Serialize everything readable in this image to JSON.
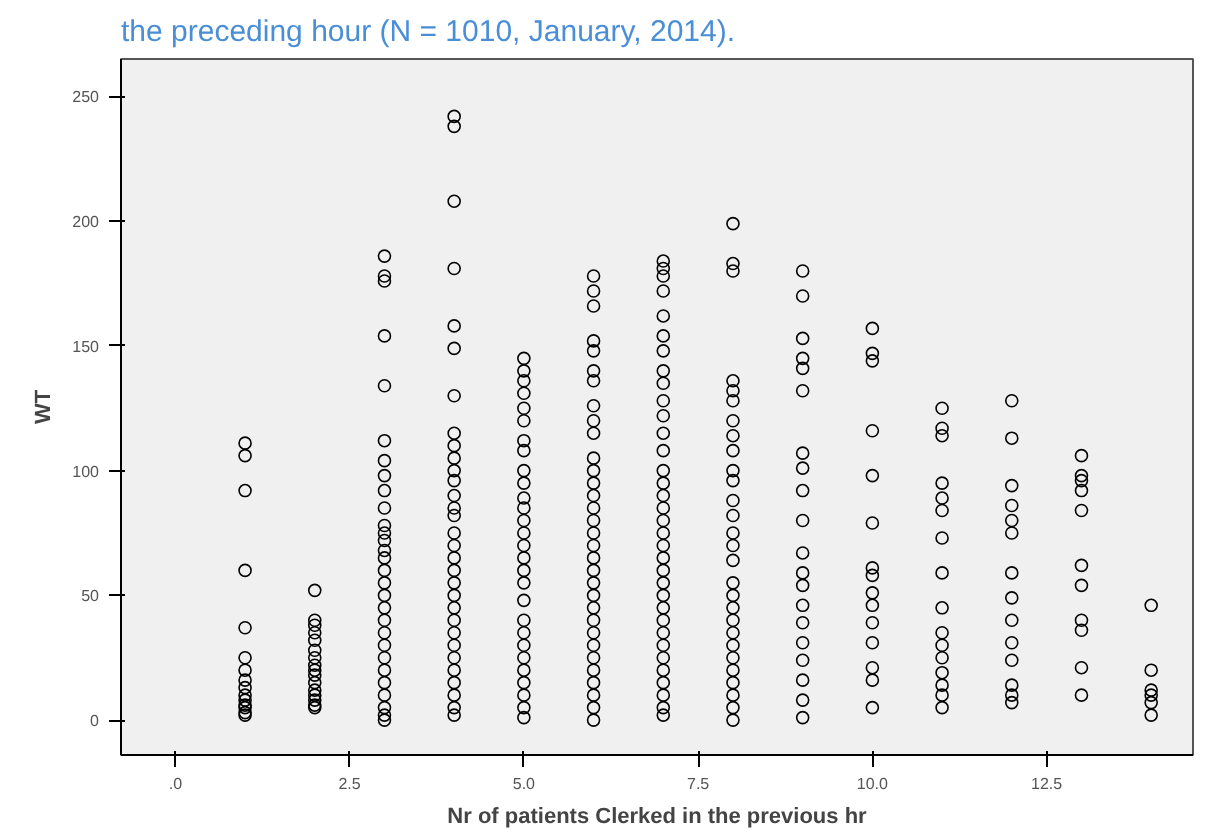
{
  "chart_data": {
    "type": "scatter",
    "title": "the preceding hour (N = 1010, January, 2014).",
    "xlabel": "Nr of patients Clerked in the previous hr",
    "ylabel": "WT",
    "marker": "circle",
    "xlim": [
      -0.78,
      14.6
    ],
    "ylim": [
      -14,
      265
    ],
    "xticks": [
      {
        "value": 0,
        "label": ".0"
      },
      2.5,
      {
        "value": 5,
        "label": "5.0"
      },
      7.5,
      {
        "value": 10,
        "label": "10.0"
      },
      12.5
    ],
    "yticks": [
      0,
      50,
      100,
      150,
      200,
      250
    ],
    "series": [
      {
        "color": "#000000",
        "x": [
          1,
          1,
          1,
          1,
          1,
          1,
          1,
          1,
          1,
          1,
          1,
          1,
          1,
          1,
          1
        ],
        "values": [
          111,
          106,
          92,
          60,
          37,
          25,
          20,
          16,
          13,
          10,
          8,
          6,
          5,
          3,
          2
        ]
      },
      {
        "color": "#000000",
        "x": [
          2,
          2,
          2,
          2,
          2,
          2,
          2,
          2,
          2,
          2,
          2,
          2,
          2,
          2,
          2,
          2
        ],
        "values": [
          52,
          40,
          38,
          35,
          32,
          28,
          25,
          22,
          20,
          18,
          15,
          12,
          10,
          8,
          6,
          5
        ]
      },
      {
        "color": "#000000",
        "x": [
          3,
          3,
          3,
          3,
          3,
          3,
          3,
          3,
          3,
          3,
          3,
          3,
          3,
          3,
          3,
          3,
          3,
          3,
          3,
          3,
          3,
          3,
          3,
          3,
          3,
          3,
          3,
          3,
          3
        ],
        "values": [
          186,
          178,
          176,
          154,
          134,
          112,
          104,
          98,
          92,
          85,
          78,
          75,
          72,
          68,
          65,
          60,
          55,
          50,
          45,
          40,
          35,
          30,
          25,
          20,
          15,
          10,
          5,
          2,
          0
        ]
      },
      {
        "color": "#000000",
        "x": [
          4,
          4,
          4,
          4,
          4,
          4,
          4,
          4,
          4,
          4,
          4,
          4,
          4,
          4,
          4,
          4,
          4,
          4,
          4,
          4,
          4,
          4,
          4,
          4,
          4,
          4,
          4,
          4,
          4,
          4,
          4
        ],
        "values": [
          242,
          238,
          208,
          181,
          158,
          149,
          130,
          115,
          110,
          105,
          100,
          96,
          90,
          85,
          82,
          75,
          70,
          65,
          60,
          55,
          50,
          45,
          40,
          35,
          30,
          25,
          20,
          15,
          10,
          5,
          2
        ]
      },
      {
        "color": "#000000",
        "x": [
          5,
          5,
          5,
          5,
          5,
          5,
          5,
          5,
          5,
          5,
          5,
          5,
          5,
          5,
          5,
          5,
          5,
          5,
          5,
          5,
          5,
          5,
          5,
          5,
          5,
          5,
          5,
          5
        ],
        "values": [
          145,
          140,
          136,
          131,
          125,
          120,
          112,
          108,
          100,
          95,
          89,
          85,
          80,
          75,
          70,
          65,
          60,
          55,
          48,
          40,
          35,
          30,
          25,
          20,
          15,
          10,
          5,
          1
        ]
      },
      {
        "color": "#000000",
        "x": [
          6,
          6,
          6,
          6,
          6,
          6,
          6,
          6,
          6,
          6,
          6,
          6,
          6,
          6,
          6,
          6,
          6,
          6,
          6,
          6,
          6,
          6,
          6,
          6,
          6,
          6,
          6,
          6,
          6,
          6,
          6,
          6
        ],
        "values": [
          178,
          172,
          166,
          152,
          148,
          140,
          136,
          126,
          120,
          115,
          105,
          100,
          95,
          90,
          85,
          80,
          75,
          70,
          65,
          60,
          55,
          50,
          45,
          40,
          35,
          30,
          25,
          20,
          15,
          10,
          5,
          0
        ]
      },
      {
        "color": "#000000",
        "x": [
          7,
          7,
          7,
          7,
          7,
          7,
          7,
          7,
          7,
          7,
          7,
          7,
          7,
          7,
          7,
          7,
          7,
          7,
          7,
          7,
          7,
          7,
          7,
          7,
          7,
          7,
          7,
          7,
          7,
          7,
          7,
          7,
          7,
          7
        ],
        "values": [
          184,
          181,
          178,
          172,
          162,
          154,
          148,
          140,
          135,
          128,
          122,
          115,
          108,
          100,
          95,
          90,
          85,
          80,
          75,
          70,
          65,
          60,
          55,
          50,
          45,
          40,
          35,
          30,
          25,
          20,
          15,
          10,
          5,
          2
        ]
      },
      {
        "color": "#000000",
        "x": [
          8,
          8,
          8,
          8,
          8,
          8,
          8,
          8,
          8,
          8,
          8,
          8,
          8,
          8,
          8,
          8,
          8,
          8,
          8,
          8,
          8,
          8,
          8,
          8,
          8,
          8,
          8,
          8
        ],
        "values": [
          199,
          183,
          180,
          136,
          132,
          128,
          120,
          114,
          108,
          100,
          96,
          88,
          82,
          75,
          70,
          64,
          55,
          50,
          45,
          40,
          35,
          30,
          25,
          20,
          15,
          10,
          5,
          0
        ]
      },
      {
        "color": "#000000",
        "x": [
          9,
          9,
          9,
          9,
          9,
          9,
          9,
          9,
          9,
          9,
          9,
          9,
          9,
          9,
          9,
          9,
          9,
          9,
          9,
          9
        ],
        "values": [
          180,
          170,
          153,
          145,
          141,
          132,
          107,
          101,
          92,
          80,
          67,
          59,
          54,
          46,
          39,
          31,
          24,
          16,
          8,
          1
        ]
      },
      {
        "color": "#000000",
        "x": [
          10,
          10,
          10,
          10,
          10,
          10,
          10,
          10,
          10,
          10,
          10,
          10,
          10,
          10,
          10
        ],
        "values": [
          157,
          147,
          144,
          116,
          98,
          79,
          61,
          58,
          51,
          46,
          39,
          31,
          21,
          16,
          5
        ]
      },
      {
        "color": "#000000",
        "x": [
          11,
          11,
          11,
          11,
          11,
          11,
          11,
          11,
          11,
          11,
          11,
          11,
          11,
          11,
          11,
          11
        ],
        "values": [
          125,
          117,
          114,
          95,
          89,
          84,
          73,
          59,
          45,
          35,
          30,
          25,
          19,
          14,
          10,
          5
        ]
      },
      {
        "color": "#000000",
        "x": [
          12,
          12,
          12,
          12,
          12,
          12,
          12,
          12,
          12,
          12,
          12,
          12,
          12,
          12
        ],
        "values": [
          128,
          113,
          94,
          86,
          80,
          75,
          59,
          49,
          40,
          31,
          24,
          14,
          10,
          7
        ]
      },
      {
        "color": "#000000",
        "x": [
          13,
          13,
          13,
          13,
          13,
          13,
          13,
          13,
          13,
          13,
          13
        ],
        "values": [
          106,
          98,
          96,
          92,
          84,
          62,
          54,
          40,
          36,
          21,
          10
        ]
      },
      {
        "color": "#000000",
        "x": [
          14,
          14,
          14,
          14,
          14,
          14
        ],
        "values": [
          46,
          20,
          12,
          10,
          7,
          2
        ]
      }
    ]
  }
}
